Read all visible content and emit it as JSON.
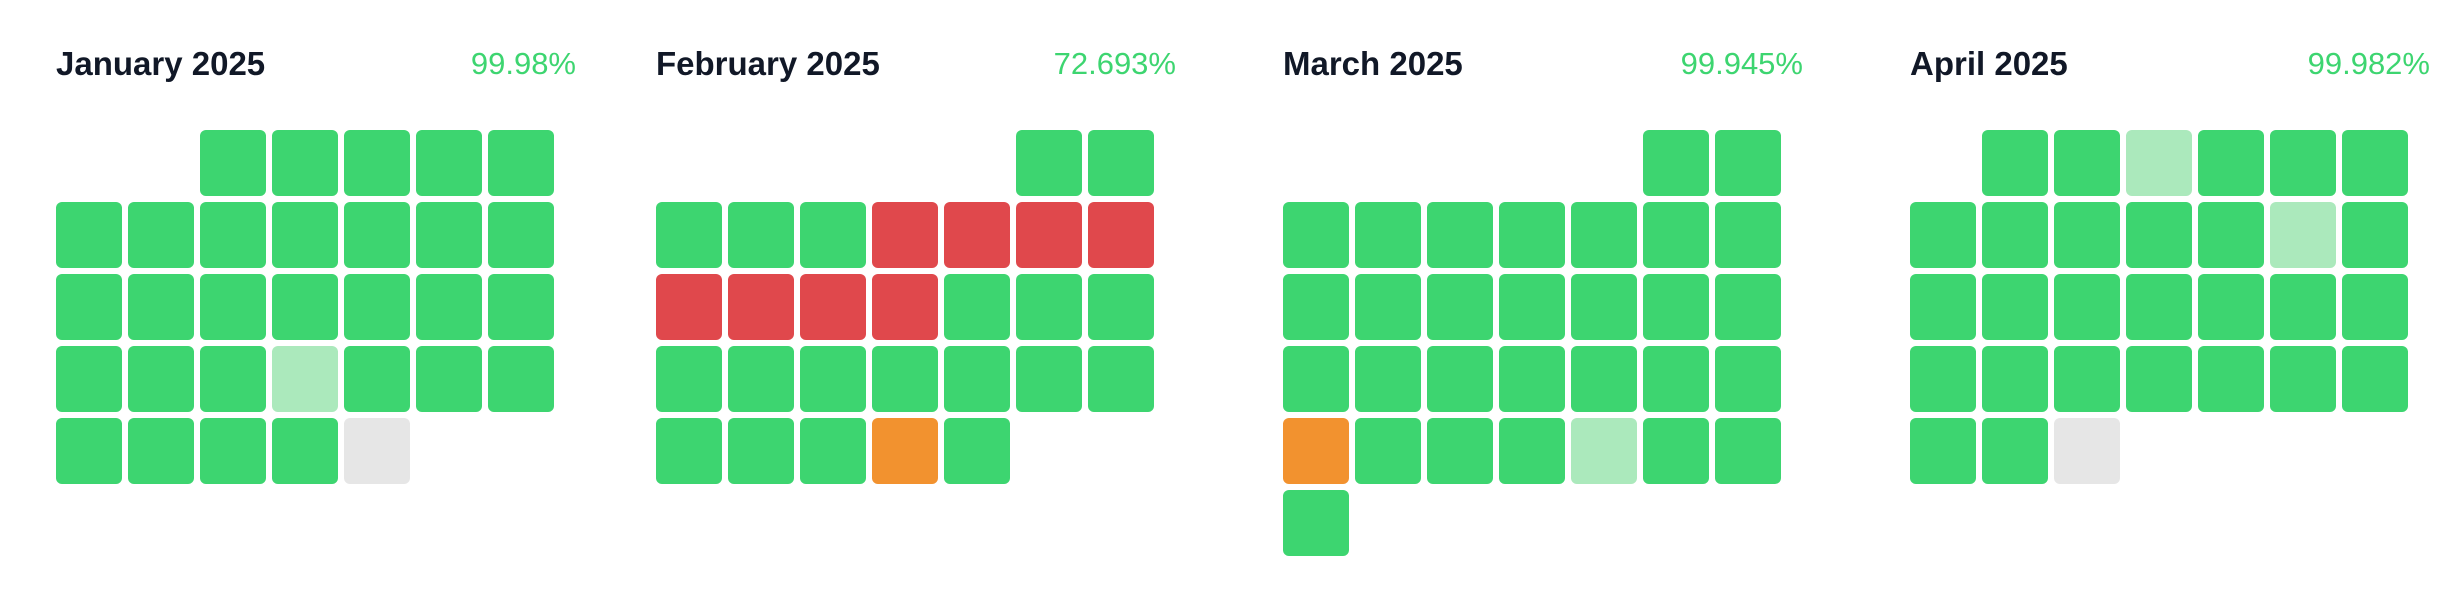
{
  "colors": {
    "operational": "#3dd570",
    "partial": "#abe9bc",
    "major_outage": "#e0484c",
    "degraded": "#f2922f",
    "no_data": "#e6e6e6",
    "uptime_text": "#3dd570",
    "title_text": "#111827"
  },
  "months": [
    {
      "title": "January 2025",
      "uptime": "99.98%",
      "first_weekday": 2,
      "days": [
        "operational",
        "operational",
        "operational",
        "operational",
        "operational",
        "operational",
        "operational",
        "operational",
        "operational",
        "operational",
        "operational",
        "operational",
        "operational",
        "operational",
        "operational",
        "operational",
        "operational",
        "operational",
        "operational",
        "operational",
        "operational",
        "operational",
        "partial",
        "operational",
        "operational",
        "operational",
        "operational",
        "operational",
        "operational",
        "operational",
        "no_data"
      ]
    },
    {
      "title": "February 2025",
      "uptime": "72.693%",
      "first_weekday": 5,
      "days": [
        "operational",
        "operational",
        "operational",
        "operational",
        "operational",
        "major_outage",
        "major_outage",
        "major_outage",
        "major_outage",
        "major_outage",
        "major_outage",
        "major_outage",
        "major_outage",
        "operational",
        "operational",
        "operational",
        "operational",
        "operational",
        "operational",
        "operational",
        "operational",
        "operational",
        "operational",
        "operational",
        "operational",
        "operational",
        "degraded",
        "operational"
      ]
    },
    {
      "title": "March 2025",
      "uptime": "99.945%",
      "first_weekday": 5,
      "days": [
        "operational",
        "operational",
        "operational",
        "operational",
        "operational",
        "operational",
        "operational",
        "operational",
        "operational",
        "operational",
        "operational",
        "operational",
        "operational",
        "operational",
        "operational",
        "operational",
        "operational",
        "operational",
        "operational",
        "operational",
        "operational",
        "operational",
        "operational",
        "degraded",
        "operational",
        "operational",
        "operational",
        "partial",
        "operational",
        "operational",
        "operational"
      ]
    },
    {
      "title": "April 2025",
      "uptime": "99.982%",
      "first_weekday": 1,
      "days": [
        "operational",
        "operational",
        "partial",
        "operational",
        "operational",
        "operational",
        "operational",
        "operational",
        "operational",
        "operational",
        "operational",
        "partial",
        "operational",
        "operational",
        "operational",
        "operational",
        "operational",
        "operational",
        "operational",
        "operational",
        "operational",
        "operational",
        "operational",
        "operational",
        "operational",
        "operational",
        "operational",
        "operational",
        "operational",
        "no_data"
      ]
    }
  ]
}
